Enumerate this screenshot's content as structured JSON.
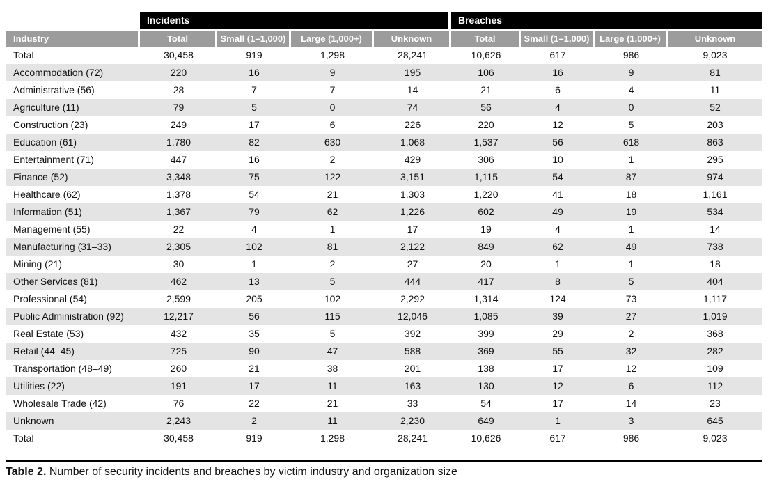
{
  "table": {
    "group_headers": [
      {
        "label": "Incidents"
      },
      {
        "label": "Breaches"
      }
    ],
    "column_headers": [
      "Industry",
      "Total",
      "Small (1–1,000)",
      "Large (1,000+)",
      "Unknown",
      "Total",
      "Small (1–1,000)",
      "Large (1,000+)",
      "Unknown"
    ],
    "rows": [
      {
        "industry": "Total",
        "values": [
          "30,458",
          "919",
          "1,298",
          "28,241",
          "10,626",
          "617",
          "986",
          "9,023"
        ]
      },
      {
        "industry": "Accommodation (72)",
        "values": [
          "220",
          "16",
          "9",
          "195",
          "106",
          "16",
          "9",
          "81"
        ]
      },
      {
        "industry": "Administrative (56)",
        "values": [
          "28",
          "7",
          "7",
          "14",
          "21",
          "6",
          "4",
          "11"
        ]
      },
      {
        "industry": "Agriculture (11)",
        "values": [
          "79",
          "5",
          "0",
          "74",
          "56",
          "4",
          "0",
          "52"
        ]
      },
      {
        "industry": "Construction (23)",
        "values": [
          "249",
          "17",
          "6",
          "226",
          "220",
          "12",
          "5",
          "203"
        ]
      },
      {
        "industry": "Education (61)",
        "values": [
          "1,780",
          "82",
          "630",
          "1,068",
          "1,537",
          "56",
          "618",
          "863"
        ]
      },
      {
        "industry": "Entertainment (71)",
        "values": [
          "447",
          "16",
          "2",
          "429",
          "306",
          "10",
          "1",
          "295"
        ]
      },
      {
        "industry": "Finance (52)",
        "values": [
          "3,348",
          "75",
          "122",
          "3,151",
          "1,115",
          "54",
          "87",
          "974"
        ]
      },
      {
        "industry": "Healthcare (62)",
        "values": [
          "1,378",
          "54",
          "21",
          "1,303",
          "1,220",
          "41",
          "18",
          "1,161"
        ]
      },
      {
        "industry": "Information (51)",
        "values": [
          "1,367",
          "79",
          "62",
          "1,226",
          "602",
          "49",
          "19",
          "534"
        ]
      },
      {
        "industry": "Management (55)",
        "values": [
          "22",
          "4",
          "1",
          "17",
          "19",
          "4",
          "1",
          "14"
        ]
      },
      {
        "industry": "Manufacturing (31–33)",
        "values": [
          "2,305",
          "102",
          "81",
          "2,122",
          "849",
          "62",
          "49",
          "738"
        ]
      },
      {
        "industry": "Mining (21)",
        "values": [
          "30",
          "1",
          "2",
          "27",
          "20",
          "1",
          "1",
          "18"
        ]
      },
      {
        "industry": "Other Services (81)",
        "values": [
          "462",
          "13",
          "5",
          "444",
          "417",
          "8",
          "5",
          "404"
        ]
      },
      {
        "industry": "Professional (54)",
        "values": [
          "2,599",
          "205",
          "102",
          "2,292",
          "1,314",
          "124",
          "73",
          "1,117"
        ]
      },
      {
        "industry": "Public Administration (92)",
        "values": [
          "12,217",
          "56",
          "115",
          "12,046",
          "1,085",
          "39",
          "27",
          "1,019"
        ]
      },
      {
        "industry": "Real Estate (53)",
        "values": [
          "432",
          "35",
          "5",
          "392",
          "399",
          "29",
          "2",
          "368"
        ]
      },
      {
        "industry": "Retail (44–45)",
        "values": [
          "725",
          "90",
          "47",
          "588",
          "369",
          "55",
          "32",
          "282"
        ]
      },
      {
        "industry": "Transportation (48–49)",
        "values": [
          "260",
          "21",
          "38",
          "201",
          "138",
          "17",
          "12",
          "109"
        ]
      },
      {
        "industry": "Utilities (22)",
        "values": [
          "191",
          "17",
          "11",
          "163",
          "130",
          "12",
          "6",
          "112"
        ]
      },
      {
        "industry": "Wholesale Trade (42)",
        "values": [
          "76",
          "22",
          "21",
          "33",
          "54",
          "17",
          "14",
          "23"
        ]
      },
      {
        "industry": "Unknown",
        "values": [
          "2,243",
          "2",
          "11",
          "2,230",
          "649",
          "1",
          "3",
          "645"
        ]
      },
      {
        "industry": "Total",
        "values": [
          "30,458",
          "919",
          "1,298",
          "28,241",
          "10,626",
          "617",
          "986",
          "9,023"
        ]
      }
    ]
  },
  "caption": {
    "label": "Table 2.",
    "text": " Number of security incidents and breaches by victim industry and organization size"
  },
  "colors": {
    "group_header_bg": "#000000",
    "column_header_bg": "#9c9c9c",
    "stripe_bg": "#e4e4e4",
    "header_text": "#ffffff",
    "body_text": "#111111"
  }
}
